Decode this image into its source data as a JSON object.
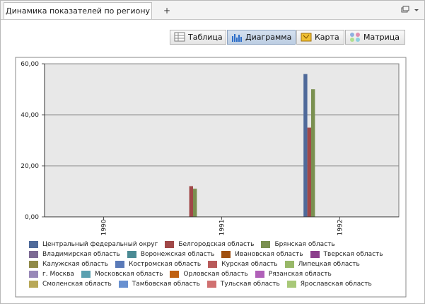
{
  "tabs": [
    {
      "label": "Динамика показателей по региону"
    },
    {
      "label": "+"
    }
  ],
  "toolbar": {
    "buttons": [
      "Таблица",
      "Диаграмма",
      "Карта",
      "Матрица"
    ]
  },
  "chart_data": {
    "type": "bar",
    "categories": [
      "1990",
      "1991",
      "1992"
    ],
    "ylim": [
      0,
      60
    ],
    "yticks": [
      {
        "value": 0,
        "label": "0,00"
      },
      {
        "value": 20,
        "label": "20,00"
      },
      {
        "value": 40,
        "label": "40,00"
      },
      {
        "value": 60,
        "label": "60,00"
      }
    ],
    "grid": true,
    "series": [
      {
        "name": "Центральный федеральный округ",
        "color": "#4f6a9a",
        "values": [
          null,
          null,
          56
        ]
      },
      {
        "name": "Белгородская область",
        "color": "#a04848",
        "values": [
          null,
          12,
          35
        ]
      },
      {
        "name": "Брянская область",
        "color": "#7a9050",
        "values": [
          null,
          11,
          50
        ]
      },
      {
        "name": "Владимирская область",
        "color": "#7c6a94",
        "values": [
          null,
          null,
          null
        ]
      },
      {
        "name": "Воронежская область",
        "color": "#4a8a94",
        "values": [
          null,
          null,
          null
        ]
      },
      {
        "name": "Ивановская область",
        "color": "#a05010",
        "values": [
          null,
          null,
          null
        ]
      },
      {
        "name": "Тверская область",
        "color": "#8c3e8c",
        "values": [
          null,
          null,
          null
        ]
      },
      {
        "name": "Калужская область",
        "color": "#908a48",
        "values": [
          null,
          null,
          null
        ]
      },
      {
        "name": "Костромская область",
        "color": "#5a7ab8",
        "values": [
          null,
          null,
          null
        ]
      },
      {
        "name": "Курская область",
        "color": "#b85a5a",
        "values": [
          null,
          null,
          null
        ]
      },
      {
        "name": "Липецкая область",
        "color": "#98b868",
        "values": [
          null,
          null,
          null
        ]
      },
      {
        "name": "г. Москва",
        "color": "#9888b8",
        "values": [
          null,
          null,
          null
        ]
      },
      {
        "name": "Московская область",
        "color": "#5aa0b0",
        "values": [
          null,
          null,
          null
        ]
      },
      {
        "name": "Орловская область",
        "color": "#c06010",
        "values": [
          null,
          null,
          null
        ]
      },
      {
        "name": "Рязанская область",
        "color": "#b060b8",
        "values": [
          null,
          null,
          null
        ]
      },
      {
        "name": "Смоленская область",
        "color": "#b8a858",
        "values": [
          null,
          null,
          null
        ]
      },
      {
        "name": "Тамбовская область",
        "color": "#6890d0",
        "values": [
          null,
          null,
          null
        ]
      },
      {
        "name": "Тульская область",
        "color": "#d07070",
        "values": [
          null,
          null,
          null
        ]
      },
      {
        "name": "Ярославская область",
        "color": "#a8c878",
        "values": [
          null,
          null,
          null
        ]
      }
    ]
  }
}
